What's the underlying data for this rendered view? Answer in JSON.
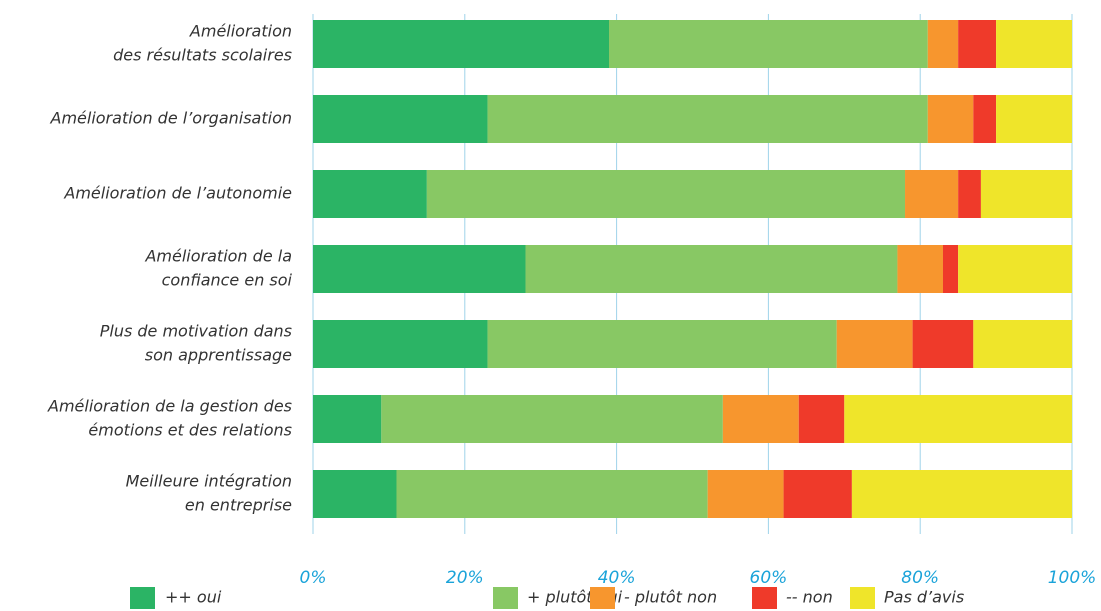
{
  "chart_data": {
    "type": "stacked-bar-horizontal",
    "categories": [
      [
        "Amélioration",
        "des résultats scolaires"
      ],
      [
        "Amélioration de l’organisation"
      ],
      [
        "Amélioration de l’autonomie"
      ],
      [
        "Amélioration de la",
        "confiance en soi"
      ],
      [
        "Plus de motivation dans",
        "son apprentissage"
      ],
      [
        "Amélioration de la gestion des",
        "émotions et des relations"
      ],
      [
        "Meilleure intégration",
        "en entreprise"
      ]
    ],
    "series": [
      {
        "name": "++ oui",
        "color": "#2bb465",
        "values": [
          39,
          23,
          15,
          28,
          23,
          9,
          11
        ]
      },
      {
        "name": "+ plutôt oui",
        "color": "#88c864",
        "values": [
          42,
          58,
          63,
          49,
          46,
          45,
          41
        ]
      },
      {
        "name": "- plutôt non",
        "color": "#f7962e",
        "values": [
          4,
          6,
          7,
          6,
          10,
          10,
          10
        ]
      },
      {
        "name": "-- non",
        "color": "#ef3a2a",
        "values": [
          5,
          3,
          3,
          2,
          8,
          6,
          9
        ]
      },
      {
        "name": "Pas d’avis",
        "color": "#efe52a",
        "values": [
          10,
          10,
          12,
          15,
          13,
          30,
          29
        ]
      }
    ],
    "xlim": [
      0,
      100
    ],
    "xticks": [
      {
        "value": 0,
        "label": "0%"
      },
      {
        "value": 20,
        "label": "20%"
      },
      {
        "value": 40,
        "label": "40%"
      },
      {
        "value": 60,
        "label": "60%"
      },
      {
        "value": 80,
        "label": "80%"
      },
      {
        "value": 100,
        "label": "100%"
      }
    ],
    "grid": true,
    "legend": "bottom"
  }
}
